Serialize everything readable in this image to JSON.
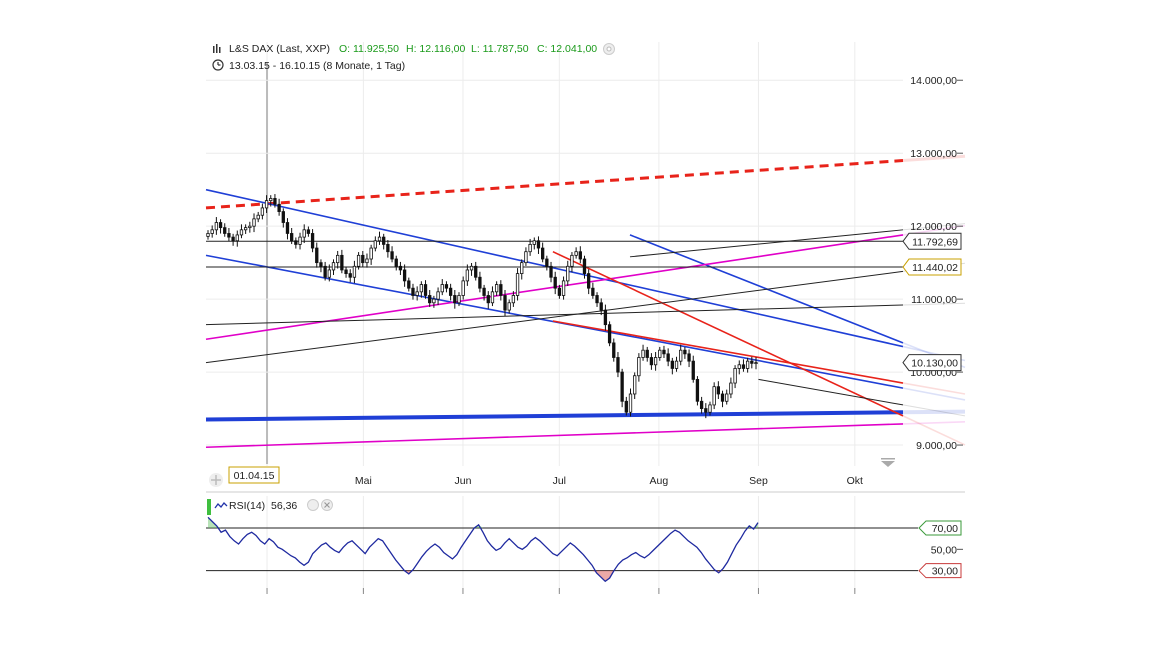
{
  "header": {
    "instrument": "L&S DAX (Last, XXP)",
    "open": "O: 11.925,50",
    "high": "H: 12.116,00",
    "low": "L: 11.787,50",
    "close": "C: 12.041,00",
    "range": "13.03.15 - 16.10.15 (8 Monate, 1 Tag)"
  },
  "cursor_date": "01.04.15",
  "indicator": {
    "label": "RSI(14)",
    "value": "56,36"
  },
  "chart_data": [
    {
      "type": "candlestick",
      "ylim": [
        8850,
        14250
      ],
      "y_ticks": [
        {
          "value": 14000,
          "label": "14.000,00"
        },
        {
          "value": 13000,
          "label": "13.000,00"
        },
        {
          "value": 12000,
          "label": "12.000,00"
        },
        {
          "value": 11000,
          "label": "11.000,00"
        },
        {
          "value": 10000,
          "label": "10.000,00"
        },
        {
          "value": 9000,
          "label": "9.000,00"
        }
      ],
      "x_ticks": [
        "Mai",
        "Jun",
        "Jul",
        "Aug",
        "Sep",
        "Okt"
      ],
      "price_labels": [
        {
          "value": 11792.69,
          "label": "11.792,69",
          "color": "#333333"
        },
        {
          "value": 11440,
          "label": "11.440,02",
          "color": "#c8a000"
        },
        {
          "value": 10130,
          "label": "10.130,00",
          "color": "#333333"
        }
      ],
      "close_series": [
        11900,
        11950,
        12050,
        11980,
        11900,
        11850,
        11800,
        11880,
        11950,
        11980,
        12000,
        12100,
        12150,
        12250,
        12350,
        12380,
        12300,
        12200,
        12050,
        11900,
        11800,
        11750,
        11850,
        11950,
        11900,
        11700,
        11500,
        11450,
        11300,
        11400,
        11500,
        11600,
        11400,
        11350,
        11300,
        11450,
        11600,
        11500,
        11550,
        11700,
        11800,
        11850,
        11750,
        11650,
        11550,
        11450,
        11400,
        11250,
        11150,
        11050,
        11100,
        11200,
        11050,
        10950,
        11000,
        11100,
        11200,
        11150,
        11050,
        10950,
        11050,
        11250,
        11400,
        11450,
        11300,
        11150,
        11050,
        10950,
        11100,
        11200,
        11050,
        10850,
        10950,
        11050,
        11350,
        11500,
        11650,
        11750,
        11800,
        11700,
        11550,
        11450,
        11300,
        11150,
        11050,
        11250,
        11450,
        11600,
        11650,
        11550,
        11350,
        11150,
        11050,
        10950,
        10850,
        10650,
        10400,
        10200,
        10000,
        9600,
        9450,
        9700,
        9950,
        10200,
        10300,
        10200,
        10100,
        10200,
        10300,
        10250,
        10150,
        10050,
        10150,
        10300,
        10250,
        10150,
        9900,
        9600,
        9500,
        9450,
        9550,
        9800,
        9700,
        9600,
        9700,
        9850,
        10050,
        10100,
        10050,
        10150,
        10120,
        10130
      ],
      "trendlines": [
        {
          "color": "#e8231a",
          "style": "dashed",
          "width": 3,
          "points": [
            [
              "2015-03-13",
              12250
            ],
            [
              "2015-10-16",
              12900
            ]
          ]
        },
        {
          "color": "#1f3fd6",
          "style": "solid",
          "width": 1.6,
          "points": [
            [
              "2015-03-13",
              12500
            ],
            [
              "2015-10-16",
              10350
            ]
          ]
        },
        {
          "color": "#1f3fd6",
          "style": "solid",
          "width": 1.6,
          "points": [
            [
              "2015-03-13",
              11600
            ],
            [
              "2015-10-16",
              9780
            ]
          ]
        },
        {
          "color": "#1f3fd6",
          "style": "solid",
          "width": 1.6,
          "points": [
            [
              "2015-07-23",
              11880
            ],
            [
              "2015-10-16",
              10400
            ]
          ]
        },
        {
          "color": "#1f3fd6",
          "style": "solid",
          "width": 4,
          "points": [
            [
              "2015-03-13",
              9350
            ],
            [
              "2015-10-16",
              9450
            ]
          ]
        },
        {
          "color": "#e000c8",
          "style": "solid",
          "width": 1.6,
          "points": [
            [
              "2015-03-13",
              10450
            ],
            [
              "2015-10-16",
              11880
            ]
          ]
        },
        {
          "color": "#e000c8",
          "style": "solid",
          "width": 1.6,
          "points": [
            [
              "2015-03-13",
              8970
            ],
            [
              "2015-10-16",
              9290
            ]
          ]
        },
        {
          "color": "#e8231a",
          "style": "solid",
          "width": 1.6,
          "points": [
            [
              "2015-06-29",
              11650
            ],
            [
              "2015-10-16",
              9400
            ]
          ]
        },
        {
          "color": "#e8231a",
          "style": "solid",
          "width": 1.6,
          "points": [
            [
              "2015-06-29",
              10700
            ],
            [
              "2015-10-16",
              9850
            ]
          ]
        },
        {
          "color": "#222222",
          "style": "solid",
          "width": 1,
          "points": [
            [
              "2015-03-13",
              10650
            ],
            [
              "2015-10-16",
              10920
            ]
          ]
        },
        {
          "color": "#222222",
          "style": "solid",
          "width": 1,
          "points": [
            [
              "2015-03-13",
              10130
            ],
            [
              "2015-10-16",
              11380
            ]
          ]
        },
        {
          "color": "#222222",
          "style": "solid",
          "width": 1,
          "points": [
            [
              "2015-07-23",
              11580
            ],
            [
              "2015-10-16",
              11950
            ]
          ]
        },
        {
          "color": "#222222",
          "style": "solid",
          "width": 1,
          "points": [
            [
              "2015-09-01",
              9900
            ],
            [
              "2015-10-16",
              9550
            ]
          ]
        },
        {
          "color": "#222222",
          "style": "solid",
          "width": 1,
          "points": [
            [
              "2015-03-13",
              11792.69
            ],
            [
              "2015-10-16",
              11792.69
            ]
          ]
        },
        {
          "color": "#222222",
          "style": "solid",
          "width": 1,
          "points": [
            [
              "2015-03-13",
              11440
            ],
            [
              "2015-10-16",
              11440
            ]
          ]
        }
      ]
    },
    {
      "type": "line",
      "title": "RSI(14)",
      "ylim": [
        10,
        100
      ],
      "y_ticks": [
        {
          "value": 70,
          "label": "70,00"
        },
        {
          "value": 50,
          "label": "50,00"
        },
        {
          "value": 30,
          "label": "30,00"
        }
      ],
      "levels": [
        70,
        30
      ],
      "values": [
        80,
        76,
        72,
        66,
        68,
        62,
        58,
        55,
        60,
        64,
        66,
        63,
        58,
        55,
        60,
        57,
        52,
        50,
        47,
        44,
        42,
        38,
        35,
        38,
        46,
        50,
        54,
        56,
        52,
        49,
        47,
        52,
        56,
        58,
        54,
        50,
        46,
        52,
        56,
        60,
        58,
        52,
        46,
        40,
        35,
        30,
        27,
        31,
        37,
        43,
        48,
        52,
        55,
        52,
        47,
        44,
        41,
        45,
        52,
        58,
        64,
        70,
        73,
        66,
        58,
        53,
        49,
        51,
        56,
        60,
        56,
        52,
        50,
        53,
        58,
        61,
        58,
        54,
        50,
        46,
        44,
        48,
        52,
        56,
        53,
        49,
        45,
        40,
        35,
        28,
        24,
        20,
        23,
        30,
        36,
        40,
        42,
        45,
        47,
        44,
        42,
        45,
        49,
        53,
        57,
        61,
        65,
        68,
        66,
        62,
        58,
        55,
        52,
        47,
        41,
        36,
        31,
        28,
        32,
        38,
        46,
        54,
        60,
        67,
        72,
        69,
        75
      ]
    }
  ]
}
